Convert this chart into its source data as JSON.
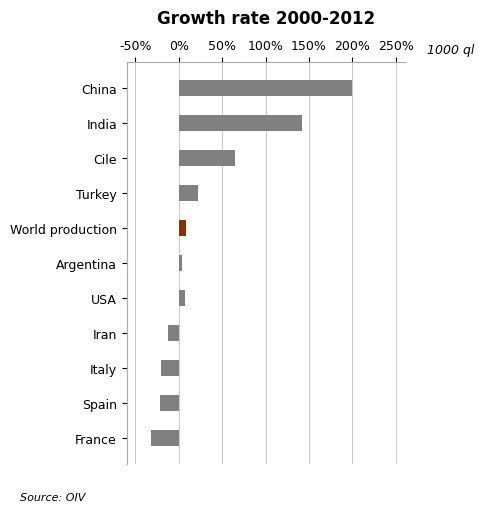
{
  "title": "Growth rate 2000-2012",
  "categories": [
    "China",
    "India",
    "Cile",
    "Turkey",
    "World production",
    "Argentina",
    "USA",
    "Iran",
    "Italy",
    "Spain",
    "France"
  ],
  "values": [
    200,
    142,
    65,
    22,
    8,
    4,
    7,
    -12,
    -20,
    -22,
    -32
  ],
  "bar_colors": [
    "#808080",
    "#808080",
    "#808080",
    "#808080",
    "#8B3000",
    "#808080",
    "#808080",
    "#808080",
    "#808080",
    "#808080",
    "#808080"
  ],
  "xlim": [
    -60,
    260
  ],
  "xticks": [
    -50,
    0,
    50,
    100,
    150,
    200,
    250
  ],
  "xtick_labels": [
    "-50%",
    "0%",
    "50%",
    "100%",
    "150%",
    "200%",
    "250%"
  ],
  "ylabel_unit": "1000 ql",
  "source_text": "Source: OIV",
  "background_color": "#ffffff",
  "grid_color": "#c8c8c8",
  "title_fontsize": 12,
  "tick_fontsize": 9,
  "label_fontsize": 9,
  "bar_height": 0.45
}
